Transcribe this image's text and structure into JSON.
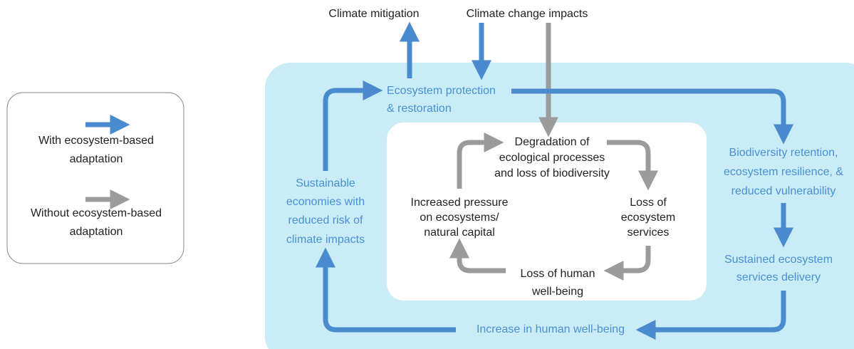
{
  "legend": {
    "items": [
      {
        "label": [
          "With ecosystem-based",
          "adaptation"
        ]
      },
      {
        "label": [
          "Without ecosystem-based",
          "adaptation"
        ]
      }
    ]
  },
  "top_labels": [
    "Climate mitigation",
    "Climate change impacts"
  ],
  "outer_nodes": [
    {
      "label": [
        "Ecosystem protection",
        "& restoration"
      ]
    },
    {
      "label": [
        "Biodiversity retention,",
        "ecosystem resilience, &",
        "reduced vulnerability"
      ]
    },
    {
      "label": [
        "Sustained ecosystem",
        "services delivery"
      ]
    },
    {
      "label": [
        "Increase in human well-being"
      ]
    },
    {
      "label": [
        "Sustainable",
        "economies with",
        "reduced risk of",
        "climate impacts"
      ]
    }
  ],
  "inner_nodes": [
    {
      "label": [
        "Degradation of",
        "ecological processes",
        "and loss of biodiversity"
      ]
    },
    {
      "label": [
        "Loss of",
        "ecosystem",
        "services"
      ]
    },
    {
      "label": [
        "Loss of human",
        "well-being"
      ]
    },
    {
      "label": [
        "Increased pressure",
        "on ecosystems/",
        "natural capital"
      ]
    }
  ]
}
